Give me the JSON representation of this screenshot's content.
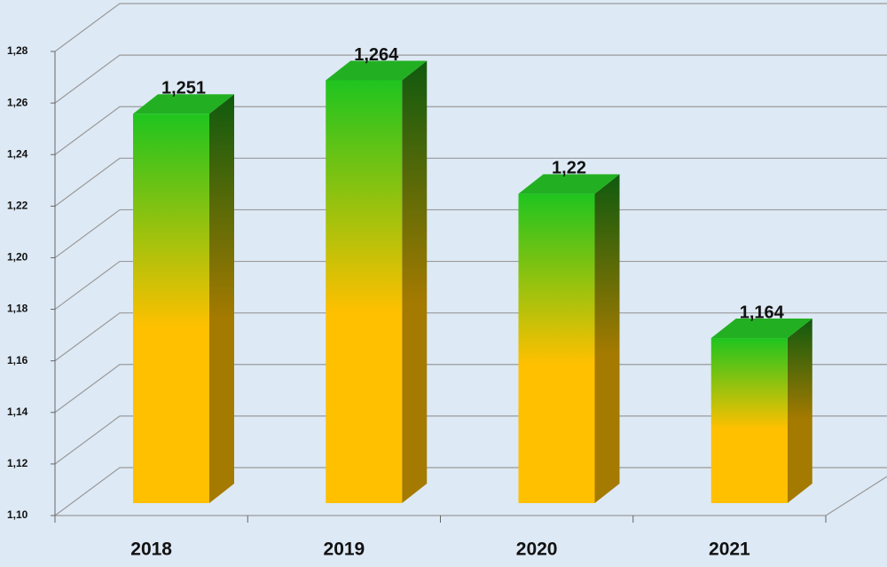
{
  "chart_data": {
    "type": "bar",
    "categories": [
      "2018",
      "2019",
      "2020",
      "2021"
    ],
    "values": [
      1.251,
      1.264,
      1.22,
      1.164
    ],
    "value_labels": [
      "1,251",
      "1,264",
      "1,22",
      "1,164"
    ],
    "colors": {
      "top": "#1fc41f",
      "bottom": "#ffc000"
    },
    "ylim": [
      1.1,
      1.28
    ],
    "yticks": [
      {
        "value": 1.1,
        "label": "1,10"
      },
      {
        "value": 1.12,
        "label": "1,12"
      },
      {
        "value": 1.14,
        "label": "1,14"
      },
      {
        "value": 1.16,
        "label": "1,16"
      },
      {
        "value": 1.18,
        "label": "1,18"
      },
      {
        "value": 1.2,
        "label": "1,20"
      },
      {
        "value": 1.22,
        "label": "1,22"
      },
      {
        "value": 1.24,
        "label": "1,24"
      },
      {
        "value": 1.26,
        "label": "1,26"
      },
      {
        "value": 1.28,
        "label": "1,28"
      }
    ],
    "grid": true
  }
}
